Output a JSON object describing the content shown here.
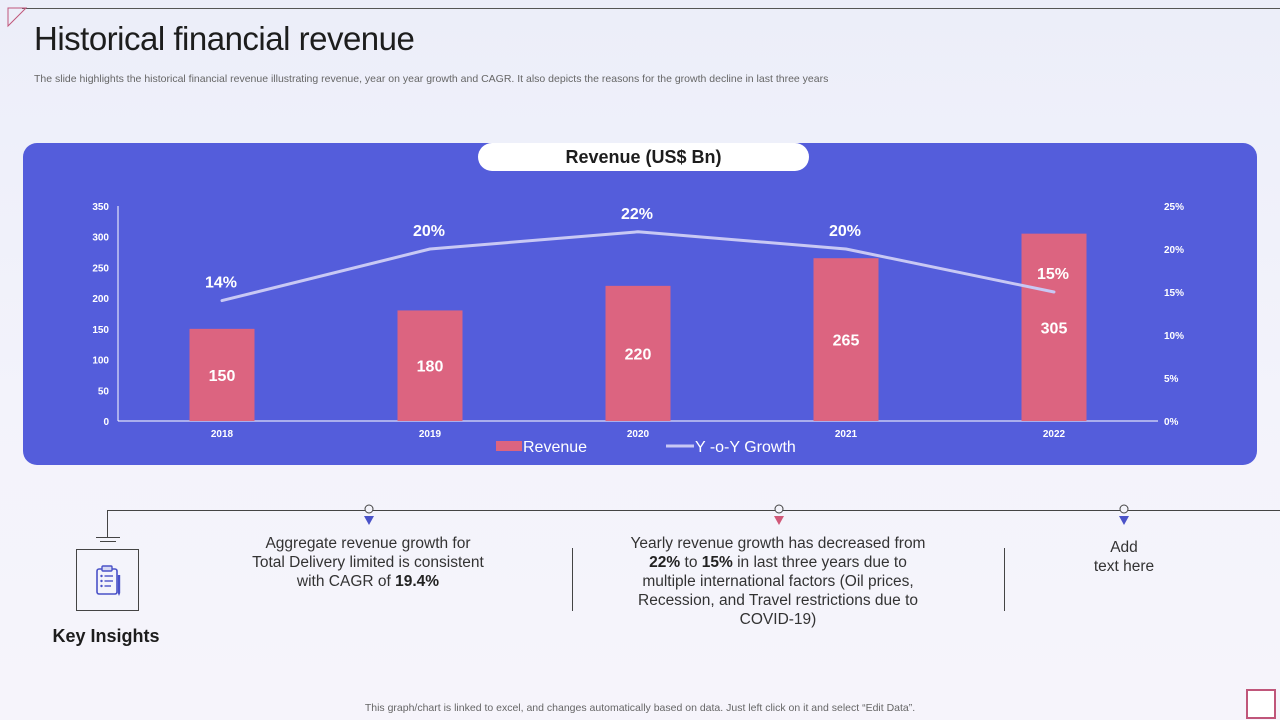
{
  "slide": {
    "title": "Historical financial revenue",
    "subtitle": "The slide highlights the historical financial revenue illustrating revenue, year on year growth and CAGR.  It also depicts the reasons for the growth decline in last three years",
    "footer": "This graph/chart is linked to excel,  and changes automatically based on data. Just left click on it and select “Edit Data”."
  },
  "chart_data": {
    "type": "bar",
    "title": "Revenue (US$ Bn)",
    "categories": [
      "2018",
      "2019",
      "2020",
      "2021",
      "2022"
    ],
    "series": [
      {
        "name": "Revenue",
        "type": "bar",
        "axis": "left",
        "values": [
          150,
          180,
          220,
          265,
          305
        ],
        "color": "#dc6480"
      },
      {
        "name": "Y-o-Y Growth",
        "type": "line",
        "axis": "right",
        "values": [
          14,
          20,
          22,
          20,
          15
        ],
        "labels": [
          "14%",
          "20%",
          "22%",
          "20%",
          "15%"
        ],
        "color": "#c8c8f4"
      }
    ],
    "ylim_left": [
      0,
      350
    ],
    "yticks_left": [
      "0",
      "50",
      "100",
      "150",
      "200",
      "250",
      "300",
      "350"
    ],
    "ylim_right": [
      0,
      25
    ],
    "yticks_right": [
      "0%",
      "5%",
      "10%",
      "15%",
      "20%",
      "25%"
    ],
    "legend_labels": [
      "Revenue",
      "Y -o-Y Growth"
    ],
    "legend_position": "bottom",
    "grid": false
  },
  "insights": {
    "label": "Key Insights",
    "item1": {
      "pre": "Aggregate revenue growth for Total Delivery limited is consistent with CAGR of ",
      "bold": "19.4%"
    },
    "item2": {
      "pre": "Yearly revenue growth has decreased from ",
      "bold1": "22%",
      "mid": " to ",
      "bold2": "15%",
      "post": " in last three years due to multiple international factors (Oil prices, Recession, and Travel restrictions due to COVID-19)"
    },
    "item3": {
      "line1": "Add",
      "line2": "text here"
    }
  },
  "colors": {
    "panel": "#545ddb",
    "bar": "#dc6480",
    "line": "#c8c8f4",
    "marker_blue": "#4a52c8",
    "marker_pink": "#d05878"
  }
}
